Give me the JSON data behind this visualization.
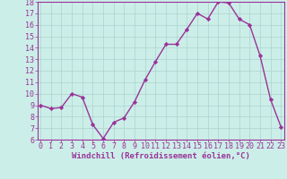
{
  "x": [
    0,
    1,
    2,
    3,
    4,
    5,
    6,
    7,
    8,
    9,
    10,
    11,
    12,
    13,
    14,
    15,
    16,
    17,
    18,
    19,
    20,
    21,
    22,
    23
  ],
  "y": [
    9.0,
    8.7,
    8.8,
    10.0,
    9.7,
    7.3,
    6.1,
    7.5,
    7.9,
    9.3,
    11.2,
    12.8,
    14.3,
    14.3,
    15.6,
    17.0,
    16.5,
    18.0,
    17.9,
    16.5,
    16.0,
    13.3,
    9.5,
    7.1
  ],
  "line_color": "#993399",
  "marker": "D",
  "marker_size": 2.2,
  "background_color": "#cceee8",
  "grid_color": "#aad4ce",
  "xlabel": "Windchill (Refroidissement éolien,°C)",
  "xlabel_color": "#993399",
  "tick_color": "#993399",
  "ylim": [
    6,
    18
  ],
  "yticks": [
    6,
    7,
    8,
    9,
    10,
    11,
    12,
    13,
    14,
    15,
    16,
    17,
    18
  ],
  "xticks": [
    0,
    1,
    2,
    3,
    4,
    5,
    6,
    7,
    8,
    9,
    10,
    11,
    12,
    13,
    14,
    15,
    16,
    17,
    18,
    19,
    20,
    21,
    22,
    23
  ],
  "spine_color": "#993399",
  "label_fontsize": 6.5,
  "tick_fontsize": 6.0,
  "linewidth": 1.0
}
